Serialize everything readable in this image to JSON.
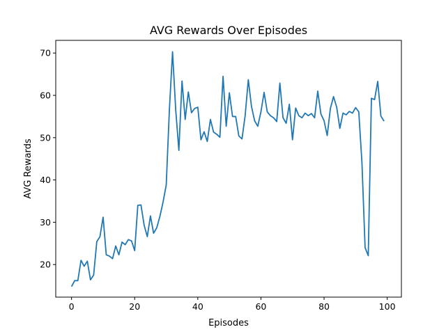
{
  "chart_data": {
    "type": "line",
    "title": "AVG Rewards Over Episodes",
    "xlabel": "Episodes",
    "ylabel": "AVG Rewards",
    "xlim": [
      -5,
      104.5
    ],
    "ylim": [
      12.3,
      73
    ],
    "xticks": [
      0,
      20,
      40,
      60,
      80,
      100
    ],
    "yticks": [
      20,
      30,
      40,
      50,
      60,
      70
    ],
    "grid": false,
    "legend": "none",
    "color": "#1f77b4",
    "series": [
      {
        "x": [
          0,
          1,
          2,
          3,
          4,
          5,
          6,
          7,
          8,
          9,
          10,
          11,
          12,
          13,
          14,
          15,
          16,
          17,
          18,
          19,
          20,
          21,
          22,
          23,
          24,
          25,
          26,
          27,
          28,
          29,
          30,
          31,
          32,
          33,
          34,
          35,
          36,
          37,
          38,
          39,
          40,
          41,
          42,
          43,
          44,
          45,
          46,
          47,
          48,
          49,
          50,
          51,
          52,
          53,
          54,
          55,
          56,
          57,
          58,
          59,
          60,
          61,
          62,
          63,
          64,
          65,
          66,
          67,
          68,
          69,
          70,
          71,
          72,
          73,
          74,
          75,
          76,
          77,
          78,
          79,
          80,
          81,
          82,
          83,
          84,
          85,
          86,
          87,
          88,
          89,
          90,
          91,
          92,
          93,
          94,
          95,
          96,
          97,
          98,
          99
        ],
        "values": [
          14.8,
          16.2,
          16.2,
          21.0,
          19.6,
          20.8,
          16.4,
          17.5,
          25.4,
          26.6,
          31.2,
          22.3,
          22.0,
          21.4,
          24.4,
          22.3,
          25.3,
          24.7,
          25.9,
          25.6,
          23.3,
          34.0,
          34.1,
          29.3,
          26.6,
          31.5,
          27.4,
          28.7,
          31.4,
          34.8,
          38.8,
          56.6,
          70.3,
          56.6,
          47.0,
          63.4,
          54.3,
          60.8,
          55.9,
          56.9,
          57.2,
          49.5,
          51.4,
          49.1,
          54.3,
          51.3,
          50.8,
          50.1,
          64.5,
          52.7,
          60.6,
          55.0,
          55.0,
          50.4,
          49.7,
          55.2,
          63.7,
          57.4,
          54.0,
          52.7,
          56.1,
          60.7,
          56.1,
          55.2,
          54.7,
          53.8,
          62.9,
          54.7,
          53.4,
          57.9,
          49.5,
          57.0,
          55.2,
          54.7,
          55.8,
          55.2,
          55.7,
          54.7,
          61.0,
          55.6,
          54.0,
          50.5,
          56.9,
          59.7,
          57.2,
          52.2,
          55.8,
          55.4,
          56.2,
          55.8,
          57.1,
          56.1,
          44.1,
          24.0,
          22.1,
          59.3,
          59.0,
          63.3,
          55.1,
          53.9
        ]
      }
    ]
  }
}
